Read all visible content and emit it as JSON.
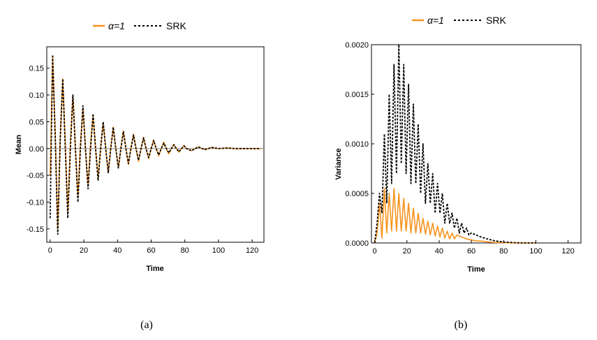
{
  "chart_data": [
    {
      "type": "line",
      "panel_label": "(a)",
      "xlabel": "Time",
      "ylabel": "Mean",
      "xlim": [
        -2,
        127
      ],
      "ylim": [
        -0.175,
        0.19
      ],
      "xticks": [
        "0",
        "20",
        "40",
        "60",
        "80",
        "100",
        "120"
      ],
      "yticks": [
        "0.15",
        "0.10",
        "0.05",
        "0.00",
        "-0.05",
        "-0.10",
        "-0.15"
      ],
      "legend_position": "top-center",
      "grid": false,
      "series": [
        {
          "name": "α=1",
          "color": "#f7931e",
          "style": "solid",
          "x": [
            0,
            1.5,
            3,
            4.5,
            6,
            7.5,
            9,
            10.5,
            12,
            13.5,
            15,
            16.5,
            18,
            19.5,
            21,
            22.5,
            24,
            25.5,
            27,
            28.5,
            30,
            31.5,
            33,
            34.5,
            36,
            37.5,
            39,
            40.5,
            42,
            43.5,
            45,
            46.5,
            48,
            49.5,
            51,
            52.5,
            54,
            55.5,
            57,
            58.5,
            60,
            61.5,
            63,
            64.5,
            66,
            67.5,
            69,
            70.5,
            72,
            73.5,
            75,
            76.5,
            78,
            79.5,
            81,
            84,
            88,
            92,
            96,
            100,
            105,
            110,
            115,
            120,
            125
          ],
          "y": [
            -0.05,
            0.17,
            0.03,
            -0.15,
            0.02,
            0.13,
            0.01,
            -0.12,
            0.01,
            0.1,
            0.0,
            -0.09,
            0.01,
            0.075,
            0.0,
            -0.07,
            0.01,
            0.06,
            0.0,
            -0.055,
            0.0,
            0.048,
            0.0,
            -0.045,
            0.0,
            0.04,
            0.0,
            -0.037,
            0.0,
            0.033,
            0.0,
            -0.03,
            0.0,
            0.027,
            0.0,
            -0.024,
            0.0,
            0.021,
            0.0,
            -0.019,
            0.0,
            0.016,
            0.0,
            -0.014,
            0.0,
            0.012,
            0.0,
            -0.01,
            0.0,
            0.008,
            0.0,
            -0.007,
            0.0,
            0.006,
            0.0,
            -0.004,
            0.003,
            -0.002,
            0.002,
            0.0,
            0.001,
            0.0,
            0.0,
            0.0,
            0.0
          ]
        },
        {
          "name": "SRK",
          "color": "#000000",
          "style": "dashed",
          "x": [
            0,
            1.5,
            3,
            4.5,
            6,
            7.5,
            9,
            10.5,
            12,
            13.5,
            15,
            16.5,
            18,
            19.5,
            21,
            22.5,
            24,
            25.5,
            27,
            28.5,
            30,
            31.5,
            33,
            34.5,
            36,
            37.5,
            39,
            40.5,
            42,
            43.5,
            45,
            46.5,
            48,
            49.5,
            51,
            52.5,
            54,
            55.5,
            57,
            58.5,
            60,
            61.5,
            63,
            64.5,
            66,
            67.5,
            69,
            70.5,
            72,
            73.5,
            75,
            76.5,
            78,
            79.5,
            81,
            84,
            88,
            92,
            96,
            100,
            105,
            110,
            115,
            120,
            125
          ],
          "y": [
            -0.13,
            0.175,
            0.02,
            -0.16,
            0.02,
            0.13,
            0.0,
            -0.13,
            0.0,
            0.1,
            0.0,
            -0.1,
            0.0,
            0.08,
            0.0,
            -0.075,
            0.0,
            0.065,
            0.0,
            -0.06,
            0.0,
            0.05,
            0.0,
            -0.045,
            0.0,
            0.04,
            0.0,
            -0.036,
            0.0,
            0.032,
            0.0,
            -0.028,
            0.0,
            0.025,
            0.0,
            -0.022,
            0.0,
            0.02,
            0.0,
            -0.017,
            0.0,
            0.015,
            0.0,
            -0.012,
            0.0,
            0.01,
            0.0,
            -0.008,
            0.0,
            0.007,
            0.0,
            -0.006,
            0.0,
            0.005,
            0.0,
            -0.004,
            0.003,
            -0.002,
            0.002,
            0.0,
            0.001,
            0.0,
            0.0,
            0.0,
            0.0
          ]
        }
      ]
    },
    {
      "type": "line",
      "panel_label": "(b)",
      "xlabel": "Time",
      "ylabel": "Variance",
      "xlim": [
        -2,
        128
      ],
      "ylim": [
        0,
        0.002
      ],
      "xticks": [
        "0",
        "20",
        "40",
        "60",
        "80",
        "100",
        "120"
      ],
      "yticks": [
        "0.0020",
        "0.0015",
        "0.0010",
        "0.0005",
        "0.0000"
      ],
      "legend_position": "top-center",
      "grid": false,
      "series": [
        {
          "name": "α=1",
          "color": "#f7931e",
          "style": "solid",
          "x": [
            0,
            1.5,
            3,
            4.5,
            6,
            7.5,
            9,
            10.5,
            12,
            13.5,
            15,
            16.5,
            18,
            19.5,
            21,
            22.5,
            24,
            25.5,
            27,
            28.5,
            30,
            31.5,
            33,
            34.5,
            36,
            37.5,
            39,
            40.5,
            42,
            43.5,
            45,
            46.5,
            48,
            49.5,
            51,
            54,
            57,
            60,
            63,
            66,
            70,
            75,
            80,
            85,
            90,
            95,
            100
          ],
          "y": [
            0.0,
            0.0001,
            0.0004,
            5e-05,
            0.00055,
            0.0001,
            0.0005,
            0.00012,
            0.00055,
            0.00012,
            0.0005,
            0.00012,
            0.00045,
            0.00012,
            0.0004,
            0.0001,
            0.00035,
            0.0001,
            0.0003,
            0.0001,
            0.00025,
            9e-05,
            0.00022,
            8e-05,
            0.0002,
            7e-05,
            0.00017,
            6e-05,
            0.00015,
            5e-05,
            0.00012,
            4e-05,
            0.0001,
            4e-05,
            8e-05,
            6e-05,
            4e-05,
            3e-05,
            2e-05,
            2e-05,
            1e-05,
            5e-06,
            3e-06,
            1e-06,
            0.0,
            0.0,
            0.0
          ]
        },
        {
          "name": "SRK",
          "color": "#000000",
          "style": "dashed",
          "x": [
            0,
            1.5,
            3,
            4.5,
            6,
            7.5,
            9,
            10.5,
            12,
            13.5,
            15,
            16.5,
            18,
            19.5,
            21,
            22.5,
            24,
            25.5,
            27,
            28.5,
            30,
            31.5,
            33,
            34.5,
            36,
            37.5,
            39,
            40.5,
            42,
            43.5,
            45,
            46.5,
            48,
            49.5,
            51,
            52.5,
            54,
            55.5,
            57,
            58.5,
            60,
            63,
            66,
            70,
            75,
            80,
            85,
            90,
            95,
            100
          ],
          "y": [
            0.0,
            0.0002,
            0.0005,
            0.0003,
            0.0011,
            0.0004,
            0.0015,
            0.0006,
            0.0018,
            0.0007,
            0.002,
            0.0008,
            0.0018,
            0.0007,
            0.0016,
            0.0006,
            0.0014,
            0.0006,
            0.0012,
            0.0005,
            0.001,
            0.0004,
            0.0008,
            0.0004,
            0.0007,
            0.0003,
            0.0006,
            0.0003,
            0.0005,
            0.0002,
            0.0004,
            0.0002,
            0.0003,
            0.00015,
            0.00025,
            0.0001,
            0.0002,
            0.0001,
            0.00015,
            8e-05,
            0.0001,
            8e-05,
            6e-05,
            4e-05,
            2e-05,
            1e-05,
            5e-06,
            0.0,
            0.0,
            0.0
          ]
        }
      ]
    }
  ]
}
